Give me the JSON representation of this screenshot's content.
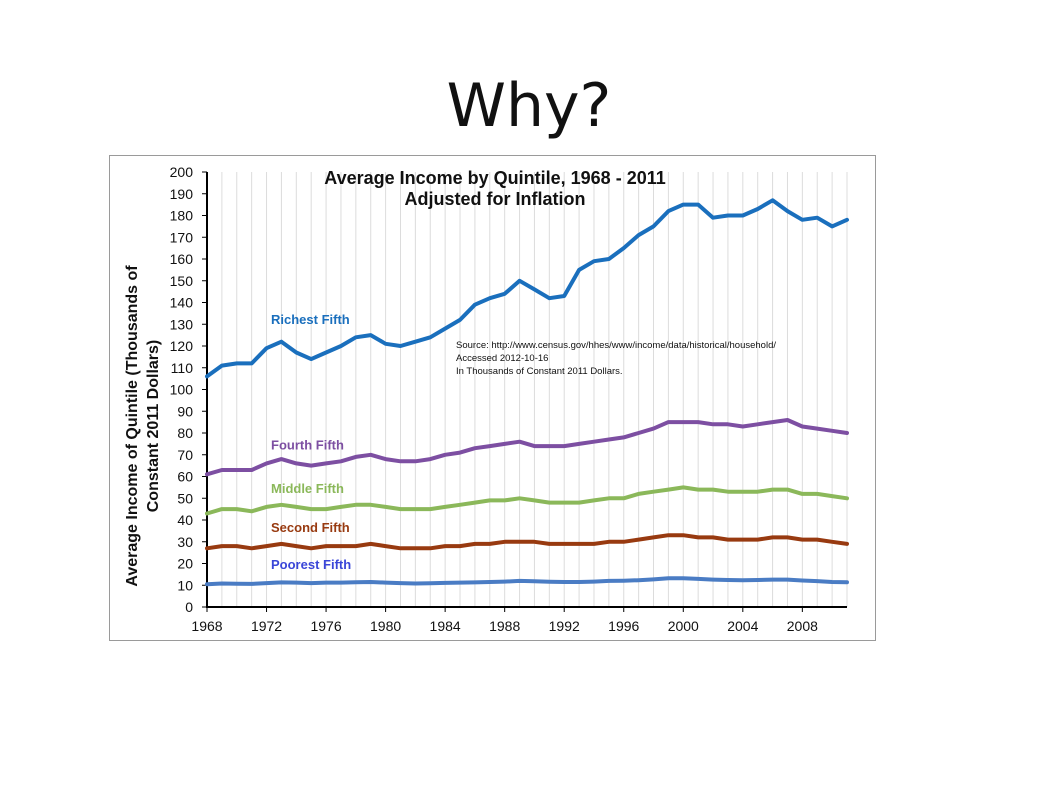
{
  "slide": {
    "title": "Why?"
  },
  "chart_data": {
    "type": "line",
    "title": "Average Income by Quintile, 1968 - 2011",
    "subtitle": "Adjusted for Inflation",
    "xlabel": "",
    "ylabel": "Average Income of Quintile (Thousands of Constant 2011 Dollars)",
    "ylabel_lines": [
      "Average Income of Quintile (Thousands of",
      "Constant 2011 Dollars)"
    ],
    "xlim": [
      1968,
      2011
    ],
    "ylim": [
      0,
      200
    ],
    "xticks": [
      1968,
      1972,
      1976,
      1980,
      1984,
      1988,
      1992,
      1996,
      2000,
      2004,
      2008
    ],
    "yticks": [
      0,
      10,
      20,
      30,
      40,
      50,
      60,
      70,
      80,
      90,
      100,
      110,
      120,
      130,
      140,
      150,
      160,
      170,
      180,
      190,
      200
    ],
    "grid": "vertical",
    "source_note": [
      "Source: http://www.census.gov/hhes/www/income/data/historical/household/",
      "Accessed 2012-10-16",
      "In Thousands of Constant 2011 Dollars."
    ],
    "x": [
      1968,
      1969,
      1970,
      1971,
      1972,
      1973,
      1974,
      1975,
      1976,
      1977,
      1978,
      1979,
      1980,
      1981,
      1982,
      1983,
      1984,
      1985,
      1986,
      1987,
      1988,
      1989,
      1990,
      1991,
      1992,
      1993,
      1994,
      1995,
      1996,
      1997,
      1998,
      1999,
      2000,
      2001,
      2002,
      2003,
      2004,
      2005,
      2006,
      2007,
      2008,
      2009,
      2010,
      2011
    ],
    "series": [
      {
        "name": "Richest Fifth",
        "color": "#1a6fbd",
        "values": [
          106,
          111,
          112,
          112,
          119,
          122,
          117,
          114,
          117,
          120,
          124,
          125,
          121,
          120,
          122,
          124,
          128,
          132,
          139,
          142,
          144,
          150,
          146,
          142,
          143,
          155,
          159,
          160,
          165,
          171,
          175,
          182,
          185,
          185,
          179,
          180,
          180,
          183,
          187,
          182,
          178,
          179,
          175,
          178
        ]
      },
      {
        "name": "Fourth Fifth",
        "color": "#7d4fa2",
        "values": [
          61,
          63,
          63,
          63,
          66,
          68,
          66,
          65,
          66,
          67,
          69,
          70,
          68,
          67,
          67,
          68,
          70,
          71,
          73,
          74,
          75,
          76,
          74,
          74,
          74,
          75,
          76,
          77,
          78,
          80,
          82,
          85,
          85,
          85,
          84,
          84,
          83,
          84,
          85,
          86,
          83,
          82,
          81,
          80
        ]
      },
      {
        "name": "Middle Fifth",
        "color": "#8bb85a",
        "values": [
          43,
          45,
          45,
          44,
          46,
          47,
          46,
          45,
          45,
          46,
          47,
          47,
          46,
          45,
          45,
          45,
          46,
          47,
          48,
          49,
          49,
          50,
          49,
          48,
          48,
          48,
          49,
          50,
          50,
          52,
          53,
          54,
          55,
          54,
          54,
          53,
          53,
          53,
          54,
          54,
          52,
          52,
          51,
          50
        ]
      },
      {
        "name": "Second Fifth",
        "color": "#983a10",
        "values": [
          27,
          28,
          28,
          27,
          28,
          29,
          28,
          27,
          28,
          28,
          28,
          29,
          28,
          27,
          27,
          27,
          28,
          28,
          29,
          29,
          30,
          30,
          30,
          29,
          29,
          29,
          29,
          30,
          30,
          31,
          32,
          33,
          33,
          32,
          32,
          31,
          31,
          31,
          32,
          32,
          31,
          31,
          30,
          29
        ]
      },
      {
        "name": "Poorest Fifth",
        "color": "#4a7cc4",
        "label_color": "#3a46d8",
        "values": [
          10.5,
          10.8,
          10.7,
          10.6,
          11,
          11.3,
          11.2,
          11,
          11.2,
          11.2,
          11.4,
          11.5,
          11.2,
          11,
          10.8,
          10.9,
          11.1,
          11.2,
          11.3,
          11.5,
          11.7,
          12,
          11.8,
          11.6,
          11.5,
          11.5,
          11.7,
          12,
          12.1,
          12.3,
          12.7,
          13.2,
          13.2,
          12.9,
          12.6,
          12.4,
          12.3,
          12.4,
          12.6,
          12.6,
          12.2,
          11.9,
          11.5,
          11.4
        ]
      }
    ]
  }
}
